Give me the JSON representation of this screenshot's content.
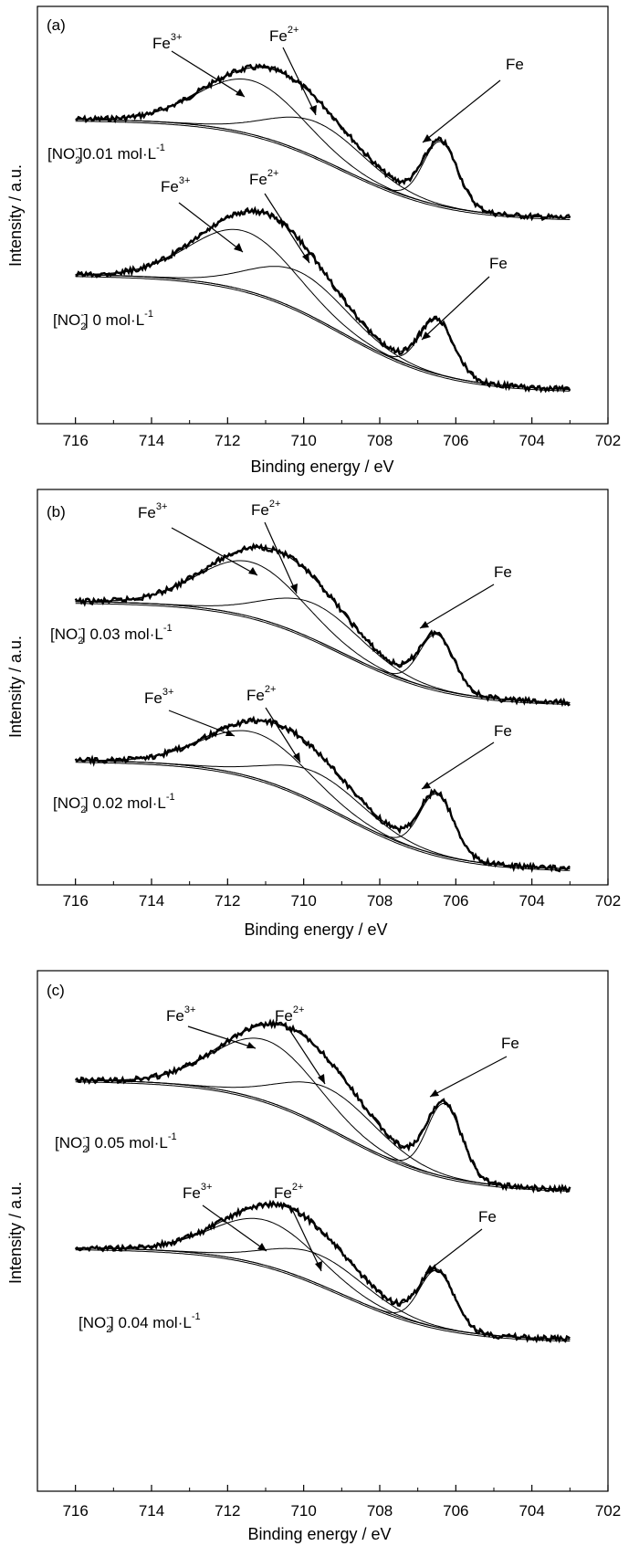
{
  "chart_data": [
    {
      "panel": "(a)",
      "type": "line",
      "xlabel": "Binding energy / eV",
      "ylabel": "Intensity / a.u.",
      "xlim": [
        717,
        702
      ],
      "x_ticks": [
        716,
        714,
        712,
        710,
        708,
        706,
        704,
        702
      ],
      "traces": [
        {
          "condition": "[NO2-]0.01 mol·L-1",
          "components": [
            {
              "name": "Fe3+",
              "center_eV": 711.4,
              "label_pointer_eV": 711.4
            },
            {
              "name": "Fe2+",
              "center_eV": 709.6,
              "label_pointer_eV": 709.0
            },
            {
              "name": "Fe",
              "center_eV": 706.4,
              "label_pointer_eV": 706.2
            }
          ]
        },
        {
          "condition": "[NO2-] 0 mol·L-1",
          "components": [
            {
              "name": "Fe3+",
              "center_eV": 711.6,
              "label_pointer_eV": 711.3
            },
            {
              "name": "Fe2+",
              "center_eV": 710.1,
              "label_pointer_eV": 709.5
            },
            {
              "name": "Fe",
              "center_eV": 706.5,
              "label_pointer_eV": 706.3
            }
          ]
        }
      ]
    },
    {
      "panel": "(b)",
      "type": "line",
      "xlabel": "Binding energy / eV",
      "ylabel": "Intensity / a.u.",
      "xlim": [
        717,
        702
      ],
      "x_ticks": [
        716,
        714,
        712,
        710,
        708,
        706,
        704,
        702
      ],
      "traces": [
        {
          "condition": "[NO2-] 0.03 mol·L-1",
          "components": [
            {
              "name": "Fe3+",
              "center_eV": 711.4,
              "label_pointer_eV": 711.5
            },
            {
              "name": "Fe2+",
              "center_eV": 709.7,
              "label_pointer_eV": 709.7
            },
            {
              "name": "Fe",
              "center_eV": 706.5,
              "label_pointer_eV": 706.2
            }
          ]
        },
        {
          "condition": "[NO2-] 0.02 mol·L-1",
          "components": [
            {
              "name": "Fe3+",
              "center_eV": 711.3,
              "label_pointer_eV": 711.3
            },
            {
              "name": "Fe2+",
              "center_eV": 709.6,
              "label_pointer_eV": 709.6
            },
            {
              "name": "Fe",
              "center_eV": 706.5,
              "label_pointer_eV": 706.3
            }
          ]
        }
      ]
    },
    {
      "panel": "(c)",
      "type": "line",
      "xlabel": "Binding energy / eV",
      "ylabel": "Intensity / a.u.",
      "xlim": [
        717,
        702
      ],
      "x_ticks": [
        716,
        714,
        712,
        710,
        708,
        706,
        704,
        702
      ],
      "traces": [
        {
          "condition": "[NO2-] 0.05 mol·L-1",
          "components": [
            {
              "name": "Fe3+",
              "center_eV": 711.0,
              "label_pointer_eV": 711.0
            },
            {
              "name": "Fe2+",
              "center_eV": 709.3,
              "label_pointer_eV": 709.0
            },
            {
              "name": "Fe",
              "center_eV": 706.3,
              "label_pointer_eV": 706.2
            }
          ]
        },
        {
          "condition": "[NO2-] 0.04 mol·L-1",
          "components": [
            {
              "name": "Fe3+",
              "center_eV": 711.0,
              "label_pointer_eV": 710.7
            },
            {
              "name": "Fe2+",
              "center_eV": 709.6,
              "label_pointer_eV": 709.2
            },
            {
              "name": "Fe",
              "center_eV": 706.5,
              "label_pointer_eV": 706.3
            }
          ]
        }
      ]
    }
  ],
  "text": {
    "fe3": "Fe",
    "fe3_sup": "3+",
    "fe2": "Fe",
    "fe2_sup": "2+",
    "fe": "Fe",
    "no2_open": "[NO",
    "no2_sup": "-",
    "no2_sub": "2",
    "unit": "mol·L",
    "unit_sup": "-1"
  },
  "labels": {
    "a": {
      "panel": "(a)",
      "c1": "]0.01 ",
      "c2": "] 0 "
    },
    "b": {
      "panel": "(b)",
      "c1": "] 0.03 ",
      "c2": "] 0.02 "
    },
    "c": {
      "panel": "(c)",
      "c1": "] 0.05 ",
      "c2": "] 0.04 "
    }
  }
}
